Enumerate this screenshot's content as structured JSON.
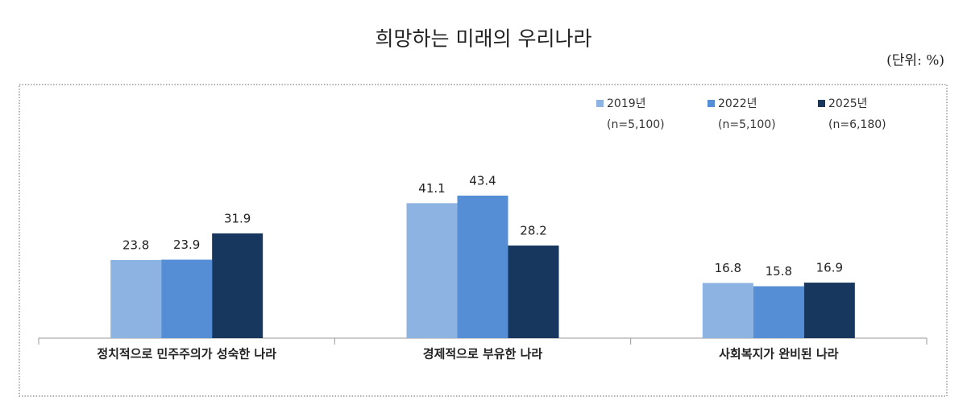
{
  "chart_data": {
    "type": "bar",
    "title": "희망하는 미래의 우리나라",
    "unit": "(단위: %)",
    "categories": [
      "정치적으로 민주주의가 성숙한 나라",
      "경제적으로 부유한 나라",
      "사회복지가 완비된 나라"
    ],
    "series": [
      {
        "name": "2019년",
        "note": "(n=5,100)",
        "color": "#8db3e2",
        "values": [
          23.8,
          41.1,
          16.8
        ]
      },
      {
        "name": "2022년",
        "note": "(n=5,100)",
        "color": "#558ed5",
        "values": [
          23.9,
          43.4,
          15.8
        ]
      },
      {
        "name": "2025년",
        "note": "(n=6,180)",
        "color": "#17375e",
        "values": [
          31.9,
          28.2,
          16.9
        ]
      }
    ],
    "ylim": [
      0,
      76
    ],
    "legend": "top-right"
  }
}
